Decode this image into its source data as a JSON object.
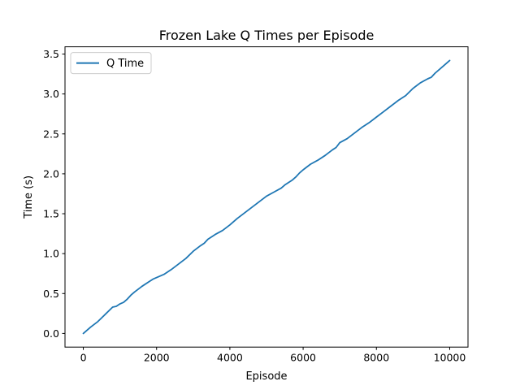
{
  "chart_data": {
    "type": "line",
    "title": "Frozen Lake Q Times per Episode",
    "xlabel": "Episode",
    "ylabel": "Time (s)",
    "xlim": [
      -500,
      10500
    ],
    "ylim": [
      -0.171,
      3.591
    ],
    "xticks": [
      0,
      2000,
      4000,
      6000,
      8000,
      10000
    ],
    "xtick_labels": [
      "0",
      "2000",
      "4000",
      "6000",
      "8000",
      "10000"
    ],
    "yticks": [
      0.0,
      0.5,
      1.0,
      1.5,
      2.0,
      2.5,
      3.0,
      3.5
    ],
    "ytick_labels": [
      "0.0",
      "0.5",
      "1.0",
      "1.5",
      "2.0",
      "2.5",
      "3.0",
      "3.5"
    ],
    "grid": false,
    "legend": "top-left",
    "series": [
      {
        "name": "Q Time",
        "color": "#1f77b4",
        "x": [
          0,
          200,
          400,
          600,
          800,
          900,
          1000,
          1100,
          1200,
          1300,
          1400,
          1600,
          1800,
          1900,
          2200,
          2400,
          2600,
          2800,
          3000,
          3200,
          3300,
          3400,
          3600,
          3800,
          4000,
          4200,
          4400,
          4600,
          4800,
          5000,
          5200,
          5400,
          5500,
          5700,
          5800,
          5900,
          6000,
          6200,
          6400,
          6600,
          6800,
          6900,
          7000,
          7200,
          7400,
          7600,
          7800,
          8000,
          8200,
          8400,
          8600,
          8800,
          9000,
          9200,
          9400,
          9500,
          9600,
          9800,
          10000
        ],
        "y": [
          0.0,
          0.08,
          0.15,
          0.24,
          0.33,
          0.34,
          0.37,
          0.39,
          0.43,
          0.48,
          0.52,
          0.59,
          0.65,
          0.68,
          0.74,
          0.8,
          0.87,
          0.94,
          1.03,
          1.1,
          1.13,
          1.18,
          1.24,
          1.29,
          1.36,
          1.44,
          1.51,
          1.58,
          1.65,
          1.72,
          1.77,
          1.82,
          1.86,
          1.92,
          1.96,
          2.01,
          2.05,
          2.12,
          2.17,
          2.23,
          2.3,
          2.33,
          2.39,
          2.44,
          2.51,
          2.58,
          2.64,
          2.71,
          2.78,
          2.85,
          2.92,
          2.98,
          3.07,
          3.14,
          3.19,
          3.21,
          3.26,
          3.34,
          3.42
        ]
      }
    ]
  }
}
